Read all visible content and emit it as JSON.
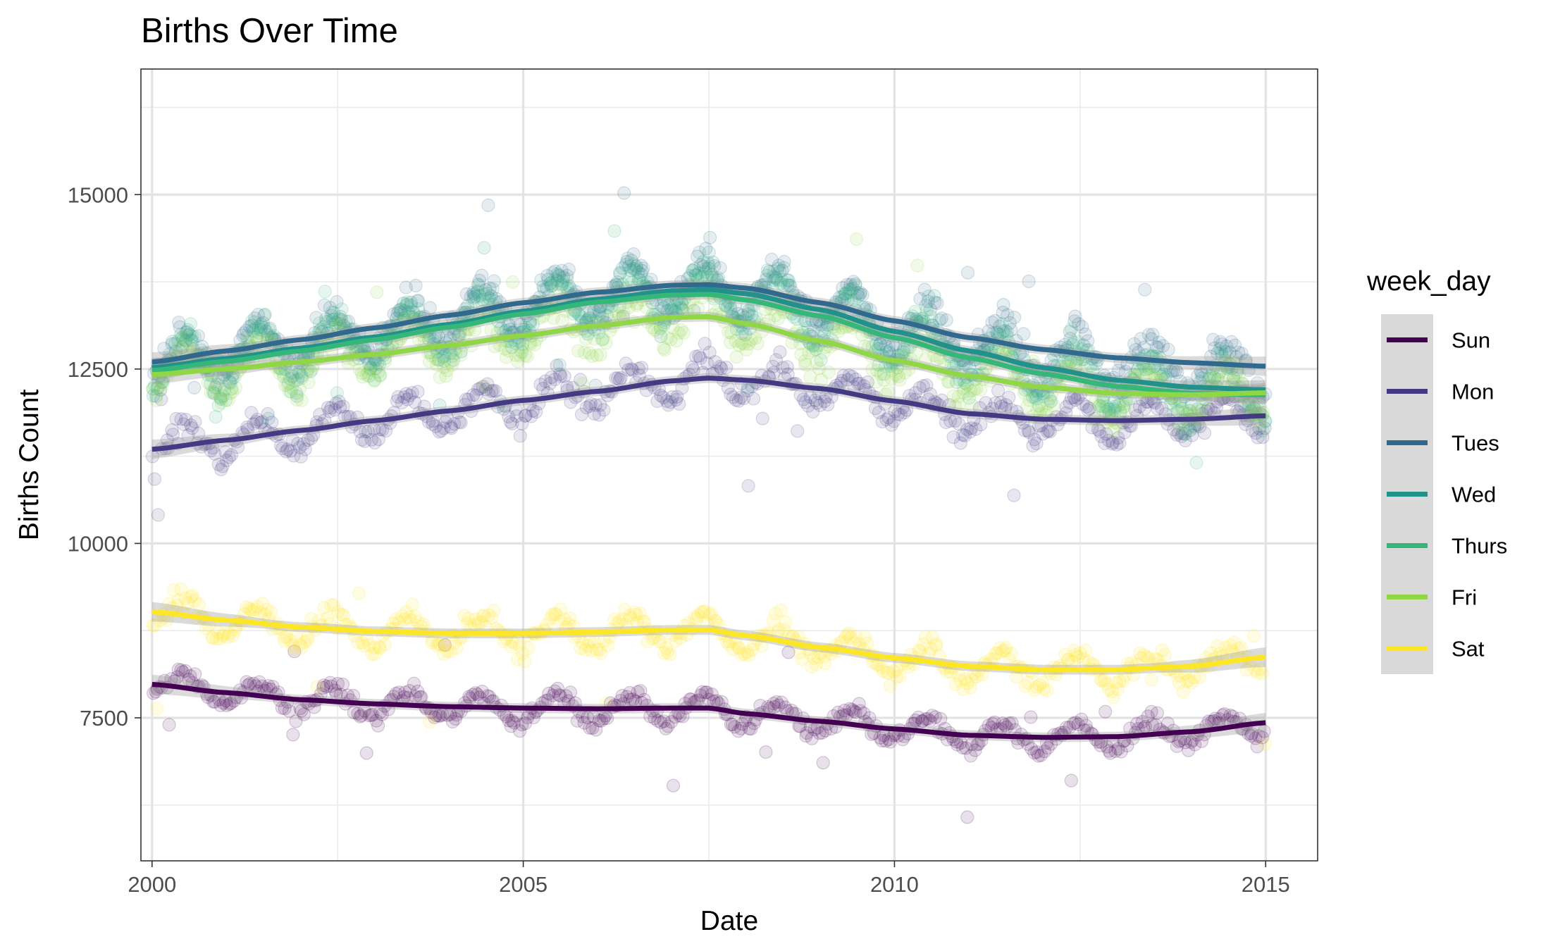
{
  "chart_data": {
    "type": "scatter",
    "title": "Births Over Time",
    "xlabel": "Date",
    "ylabel": "Births Count",
    "xlim": [
      1999.85,
      2015.7
    ],
    "ylim": [
      5450,
      16800
    ],
    "x_ticks": [
      2000,
      2005,
      2010,
      2015
    ],
    "x_tick_labels": [
      "2000",
      "2005",
      "2010",
      "2015"
    ],
    "y_ticks": [
      7500,
      10000,
      12500,
      15000
    ],
    "y_tick_labels": [
      "7500",
      "10000",
      "12500",
      "15000"
    ],
    "grid": true,
    "legend": {
      "title": "week_day",
      "position": "right"
    },
    "series": [
      {
        "name": "Sun",
        "color": "#440154",
        "trend": {
          "x": [
            2000,
            2001,
            2002,
            2003,
            2004,
            2005,
            2006,
            2007,
            2007.5,
            2008,
            2009,
            2010,
            2011,
            2012,
            2013,
            2014,
            2015
          ],
          "y": [
            7980,
            7860,
            7760,
            7700,
            7660,
            7640,
            7630,
            7640,
            7640,
            7560,
            7450,
            7340,
            7250,
            7220,
            7230,
            7300,
            7430
          ]
        },
        "points": {
          "center": [
            7980,
            7860,
            7760,
            7700,
            7660,
            7640,
            7630,
            7640,
            7640,
            7560,
            7450,
            7340,
            7250,
            7220,
            7230,
            7300,
            7430
          ],
          "amplitude": 340,
          "count_per_year": 32
        }
      },
      {
        "name": "Mon",
        "color": "#443a83",
        "trend": {
          "x": [
            2000,
            2001,
            2002,
            2003,
            2004,
            2005,
            2006,
            2007,
            2007.5,
            2008,
            2009,
            2010,
            2011,
            2012,
            2013,
            2014,
            2015
          ],
          "y": [
            11350,
            11480,
            11620,
            11760,
            11900,
            12050,
            12180,
            12330,
            12370,
            12340,
            12220,
            12040,
            11860,
            11780,
            11760,
            11780,
            11830
          ]
        },
        "points": {
          "center": [
            11350,
            11480,
            11620,
            11760,
            11900,
            12050,
            12180,
            12330,
            12370,
            12340,
            12220,
            12040,
            11860,
            11780,
            11760,
            11780,
            11830
          ],
          "amplitude": 480,
          "count_per_year": 32
        }
      },
      {
        "name": "Tues",
        "color": "#31688e",
        "trend": {
          "x": [
            2000,
            2001,
            2002,
            2003,
            2004,
            2005,
            2006,
            2007,
            2007.5,
            2008,
            2009,
            2010,
            2011,
            2012,
            2013,
            2014,
            2015
          ],
          "y": [
            12600,
            12760,
            12920,
            13090,
            13270,
            13450,
            13600,
            13700,
            13710,
            13660,
            13450,
            13190,
            12950,
            12780,
            12660,
            12590,
            12540
          ]
        },
        "points": {
          "center": [
            12600,
            12760,
            12920,
            13090,
            13270,
            13450,
            13600,
            13700,
            13710,
            13660,
            13450,
            13190,
            12950,
            12780,
            12660,
            12590,
            12540
          ],
          "amplitude": 650,
          "count_per_year": 30
        }
      },
      {
        "name": "Wed",
        "color": "#21918c",
        "trend": {
          "x": [
            2000,
            2001,
            2002,
            2003,
            2004,
            2005,
            2006,
            2007,
            2007.5,
            2008,
            2009,
            2010,
            2011,
            2012,
            2013,
            2014,
            2015
          ],
          "y": [
            12520,
            12650,
            12800,
            12960,
            13140,
            13330,
            13500,
            13620,
            13640,
            13580,
            13350,
            13040,
            12760,
            12520,
            12340,
            12240,
            12200
          ]
        },
        "points": {
          "center": [
            12520,
            12650,
            12800,
            12960,
            13140,
            13330,
            13500,
            13620,
            13640,
            13580,
            13350,
            13040,
            12760,
            12520,
            12340,
            12240,
            12200
          ],
          "amplitude": 680,
          "count_per_year": 30
        }
      },
      {
        "name": "Thurs",
        "color": "#35b779",
        "trend": {
          "x": [
            2000,
            2001,
            2002,
            2003,
            2004,
            2005,
            2006,
            2007,
            2007.5,
            2008,
            2009,
            2010,
            2011,
            2012,
            2013,
            2014,
            2015
          ],
          "y": [
            12480,
            12610,
            12760,
            12920,
            13100,
            13290,
            13460,
            13560,
            13570,
            13490,
            13260,
            12950,
            12660,
            12430,
            12250,
            12150,
            12130
          ]
        },
        "points": {
          "center": [
            12480,
            12610,
            12760,
            12920,
            13100,
            13290,
            13460,
            13560,
            13570,
            13490,
            13260,
            12950,
            12660,
            12430,
            12250,
            12150,
            12130
          ],
          "amplitude": 700,
          "count_per_year": 30
        }
      },
      {
        "name": "Fri",
        "color": "#8fd744",
        "trend": {
          "x": [
            2000,
            2001,
            2002,
            2003,
            2004,
            2005,
            2006,
            2007,
            2007.5,
            2008,
            2009,
            2010,
            2011,
            2012,
            2013,
            2014,
            2015
          ],
          "y": [
            12420,
            12500,
            12600,
            12710,
            12840,
            12980,
            13120,
            13240,
            13250,
            13150,
            12900,
            12620,
            12400,
            12240,
            12150,
            12130,
            12160
          ]
        },
        "points": {
          "center": [
            12420,
            12500,
            12600,
            12710,
            12840,
            12980,
            13120,
            13240,
            13250,
            13150,
            12900,
            12620,
            12400,
            12240,
            12150,
            12130,
            12160
          ],
          "amplitude": 620,
          "count_per_year": 30
        }
      },
      {
        "name": "Sat",
        "color": "#fde725",
        "trend": {
          "x": [
            2000,
            2001,
            2002,
            2003,
            2004,
            2005,
            2006,
            2007,
            2007.5,
            2008,
            2009,
            2010,
            2011,
            2012,
            2013,
            2014,
            2015
          ],
          "y": [
            9020,
            8900,
            8800,
            8740,
            8710,
            8710,
            8730,
            8760,
            8760,
            8680,
            8510,
            8360,
            8240,
            8190,
            8190,
            8240,
            8370
          ]
        },
        "points": {
          "center": [
            9020,
            8900,
            8800,
            8740,
            8710,
            8710,
            8730,
            8760,
            8760,
            8680,
            8510,
            8360,
            8240,
            8190,
            8190,
            8240,
            8370
          ],
          "amplitude": 420,
          "count_per_year": 32
        }
      }
    ]
  }
}
